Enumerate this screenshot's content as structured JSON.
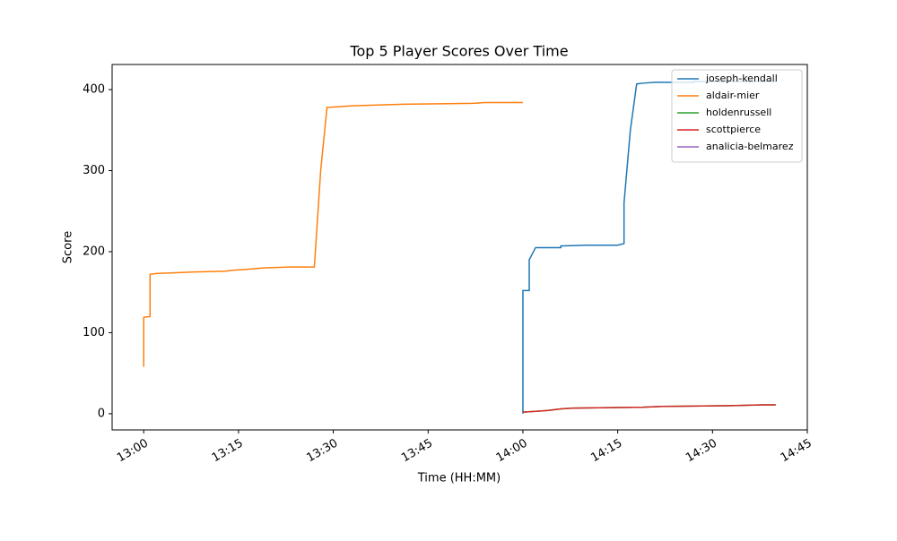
{
  "chart_data": {
    "type": "line",
    "title": "Top 5 Player Scores Over Time",
    "x_label": "Time (HH:MM)",
    "y_label": "Score",
    "xlim": [
      "12:55",
      "14:45"
    ],
    "ylim": [
      -20,
      431
    ],
    "xticks": [
      "13:00",
      "13:15",
      "13:30",
      "13:45",
      "14:00",
      "14:15",
      "14:30",
      "14:45"
    ],
    "yticks": [
      0,
      100,
      200,
      300,
      400
    ],
    "legend": "upper right",
    "series": [
      {
        "name": "joseph-kendall",
        "color": "#1f77b4",
        "x": [
          "14:00",
          "14:00",
          "14:01",
          "14:01",
          "14:02",
          "14:06",
          "14:06",
          "14:10",
          "14:15",
          "14:16",
          "14:16",
          "14:17",
          "14:18",
          "14:19",
          "14:21",
          "14:27",
          "14:27",
          "14:40"
        ],
        "values": [
          0,
          152,
          152,
          190,
          205,
          205,
          207,
          208,
          208,
          210,
          260,
          350,
          407,
          408,
          409,
          409,
          410,
          410
        ]
      },
      {
        "name": "aldair-mier",
        "color": "#ff7f0e",
        "x": [
          "13:00",
          "13:00",
          "13:01",
          "13:01",
          "13:02",
          "13:05",
          "13:08",
          "13:13",
          "13:14",
          "13:16",
          "13:19",
          "13:23",
          "13:27",
          "13:28",
          "13:29",
          "13:33",
          "13:41",
          "13:52",
          "13:54",
          "14:00"
        ],
        "values": [
          58,
          119,
          120,
          172,
          173,
          174,
          175,
          176,
          177,
          178,
          180,
          181,
          181,
          300,
          378,
          380,
          382,
          383,
          384,
          384
        ]
      },
      {
        "name": "holdenrussell",
        "color": "#2ca02c",
        "x": [
          "14:00",
          "14:02",
          "14:04",
          "14:05",
          "14:06",
          "14:08",
          "14:19",
          "14:22",
          "14:33",
          "14:38",
          "14:40"
        ],
        "values": [
          2,
          3,
          4,
          5,
          6,
          7,
          8,
          9,
          10,
          11,
          11
        ]
      },
      {
        "name": "scottpierce",
        "color": "#d62728",
        "x": [
          "14:00",
          "14:02",
          "14:04",
          "14:05",
          "14:06",
          "14:08",
          "14:19",
          "14:22",
          "14:33",
          "14:38",
          "14:40"
        ],
        "values": [
          2,
          3,
          4,
          5,
          6,
          7,
          8,
          9,
          10,
          11,
          11
        ]
      },
      {
        "name": "analicia-belmarez",
        "color": "#9467bd",
        "x": [],
        "values": []
      }
    ]
  }
}
